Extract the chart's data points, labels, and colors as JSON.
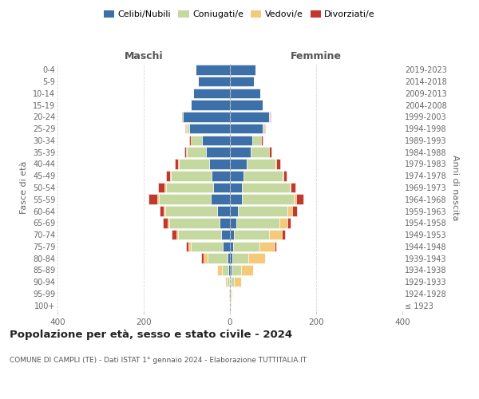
{
  "age_groups": [
    "100+",
    "95-99",
    "90-94",
    "85-89",
    "80-84",
    "75-79",
    "70-74",
    "65-69",
    "60-64",
    "55-59",
    "50-54",
    "45-49",
    "40-44",
    "35-39",
    "30-34",
    "25-29",
    "20-24",
    "15-19",
    "10-14",
    "5-9",
    "0-4"
  ],
  "birth_years": [
    "≤ 1923",
    "1924-1928",
    "1929-1933",
    "1934-1938",
    "1939-1943",
    "1944-1948",
    "1949-1953",
    "1954-1958",
    "1959-1963",
    "1964-1968",
    "1969-1973",
    "1974-1978",
    "1979-1983",
    "1984-1988",
    "1989-1993",
    "1994-1998",
    "1999-2003",
    "2004-2008",
    "2009-2013",
    "2014-2018",
    "2019-2023"
  ],
  "maschi": {
    "celibi": [
      0,
      1,
      2,
      4,
      6,
      16,
      20,
      25,
      30,
      45,
      38,
      42,
      48,
      55,
      65,
      95,
      110,
      90,
      85,
      75,
      80
    ],
    "coniugati": [
      0,
      1,
      5,
      15,
      45,
      75,
      100,
      115,
      120,
      120,
      110,
      95,
      70,
      45,
      25,
      5,
      3,
      0,
      0,
      0,
      0
    ],
    "vedovi": [
      0,
      1,
      5,
      10,
      10,
      5,
      5,
      5,
      3,
      3,
      3,
      2,
      2,
      1,
      1,
      1,
      0,
      0,
      0,
      0,
      0
    ],
    "divorziati": [
      0,
      0,
      0,
      0,
      5,
      5,
      10,
      10,
      10,
      20,
      15,
      10,
      8,
      5,
      3,
      2,
      0,
      0,
      0,
      0,
      0
    ]
  },
  "femmine": {
    "nubili": [
      0,
      1,
      2,
      4,
      5,
      8,
      10,
      15,
      18,
      28,
      28,
      32,
      38,
      48,
      52,
      75,
      90,
      75,
      70,
      55,
      60
    ],
    "coniugate": [
      0,
      2,
      8,
      22,
      38,
      60,
      80,
      100,
      115,
      120,
      110,
      90,
      68,
      42,
      20,
      5,
      3,
      0,
      0,
      0,
      0
    ],
    "vedove": [
      1,
      2,
      15,
      28,
      38,
      35,
      30,
      18,
      12,
      5,
      3,
      2,
      2,
      1,
      1,
      0,
      0,
      0,
      0,
      0,
      0
    ],
    "divorziate": [
      0,
      0,
      0,
      0,
      0,
      5,
      8,
      8,
      10,
      18,
      10,
      8,
      8,
      5,
      2,
      1,
      1,
      0,
      0,
      0,
      0
    ]
  },
  "colors": {
    "celibi": "#3d6fa8",
    "coniugati": "#c5d8a0",
    "vedovi": "#f5c97a",
    "divorziati": "#c0392b"
  },
  "title": "Popolazione per età, sesso e stato civile - 2024",
  "subtitle": "COMUNE DI CAMPLI (TE) - Dati ISTAT 1° gennaio 2024 - Elaborazione TUTTITALIA.IT",
  "xlabel_maschi": "Maschi",
  "xlabel_femmine": "Femmine",
  "ylabel": "Fasce di età",
  "ylabel_right": "Anni di nascita",
  "xlim": 400,
  "background_color": "#ffffff"
}
